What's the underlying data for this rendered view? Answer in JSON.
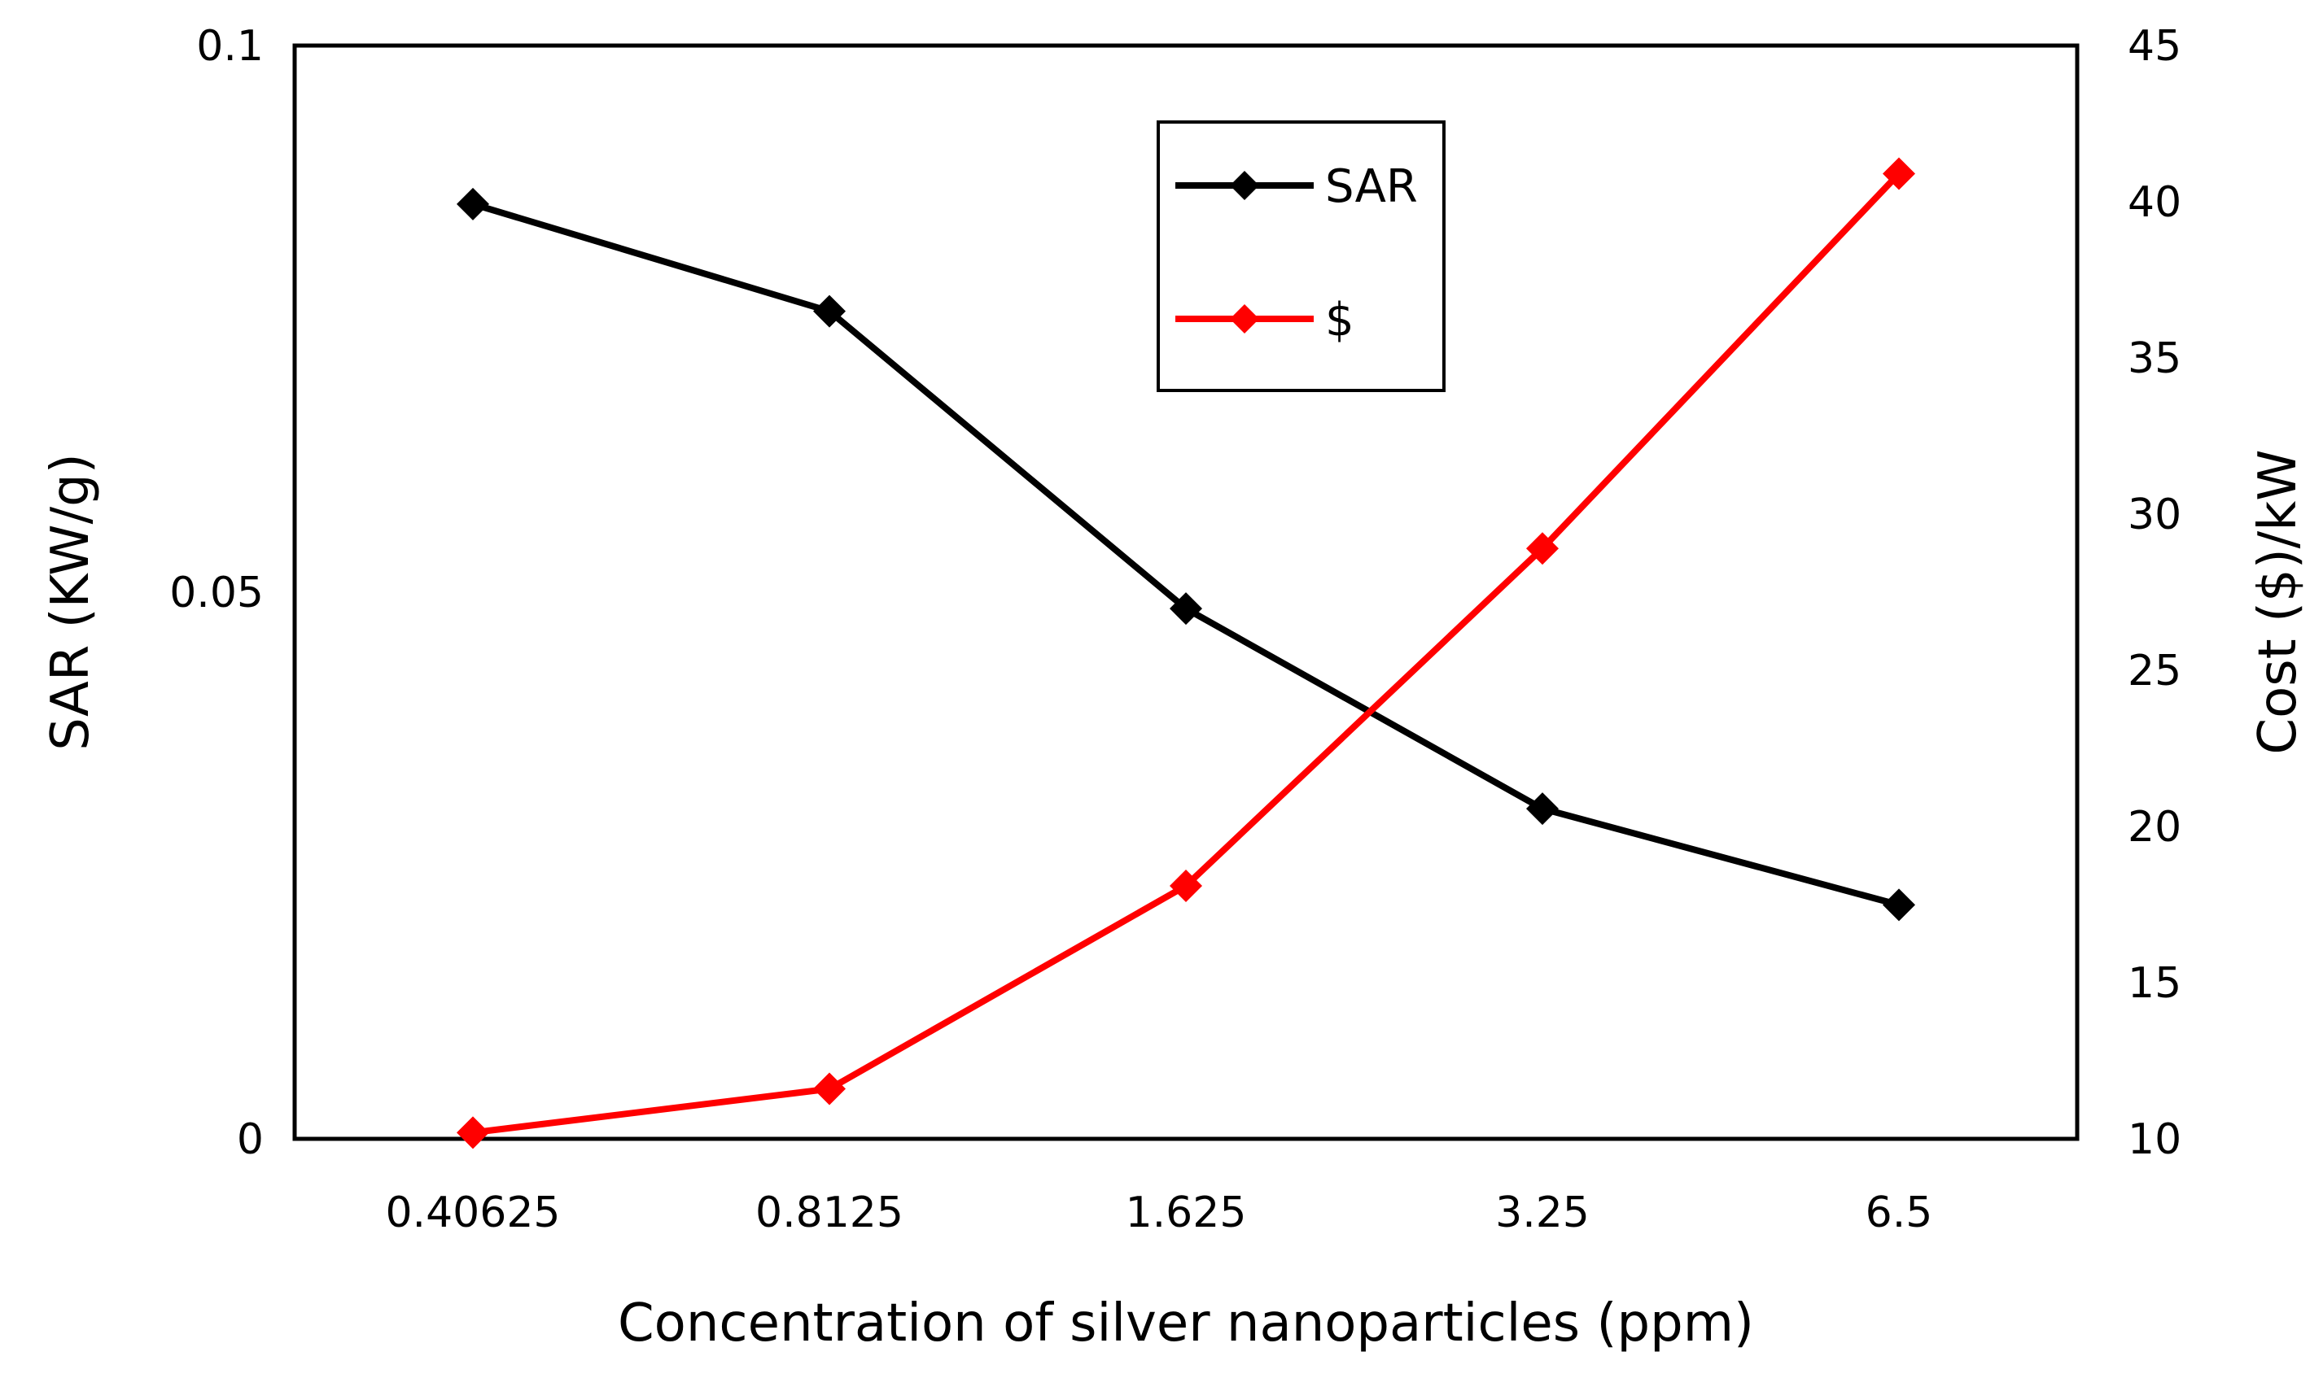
{
  "chart_data": {
    "type": "line",
    "title": "",
    "xlabel": "Concentration of silver nanoparticles (ppm)",
    "ylabel": "SAR (KW/g)",
    "y2label": "Cost ($)/kW",
    "categories": [
      "0.40625",
      "0.8125",
      "1.625",
      "3.25",
      "6.5"
    ],
    "ylim": [
      0,
      0.1
    ],
    "y2lim": [
      10,
      45
    ],
    "yticks": [
      "0",
      "0.05",
      "0.1"
    ],
    "y2ticks": [
      "10",
      "15",
      "20",
      "25",
      "30",
      "35",
      "40",
      "45"
    ],
    "grid": false,
    "legend": "top-center",
    "series": [
      {
        "name": "SAR",
        "axis": "left",
        "color": "#000000",
        "values": [
          0.0855,
          0.0757,
          0.0485,
          0.0302,
          0.0214
        ]
      },
      {
        "name": "$",
        "axis": "right",
        "color": "#ff0000",
        "values": [
          10.2,
          11.6,
          18.1,
          28.9,
          40.9
        ]
      }
    ]
  }
}
